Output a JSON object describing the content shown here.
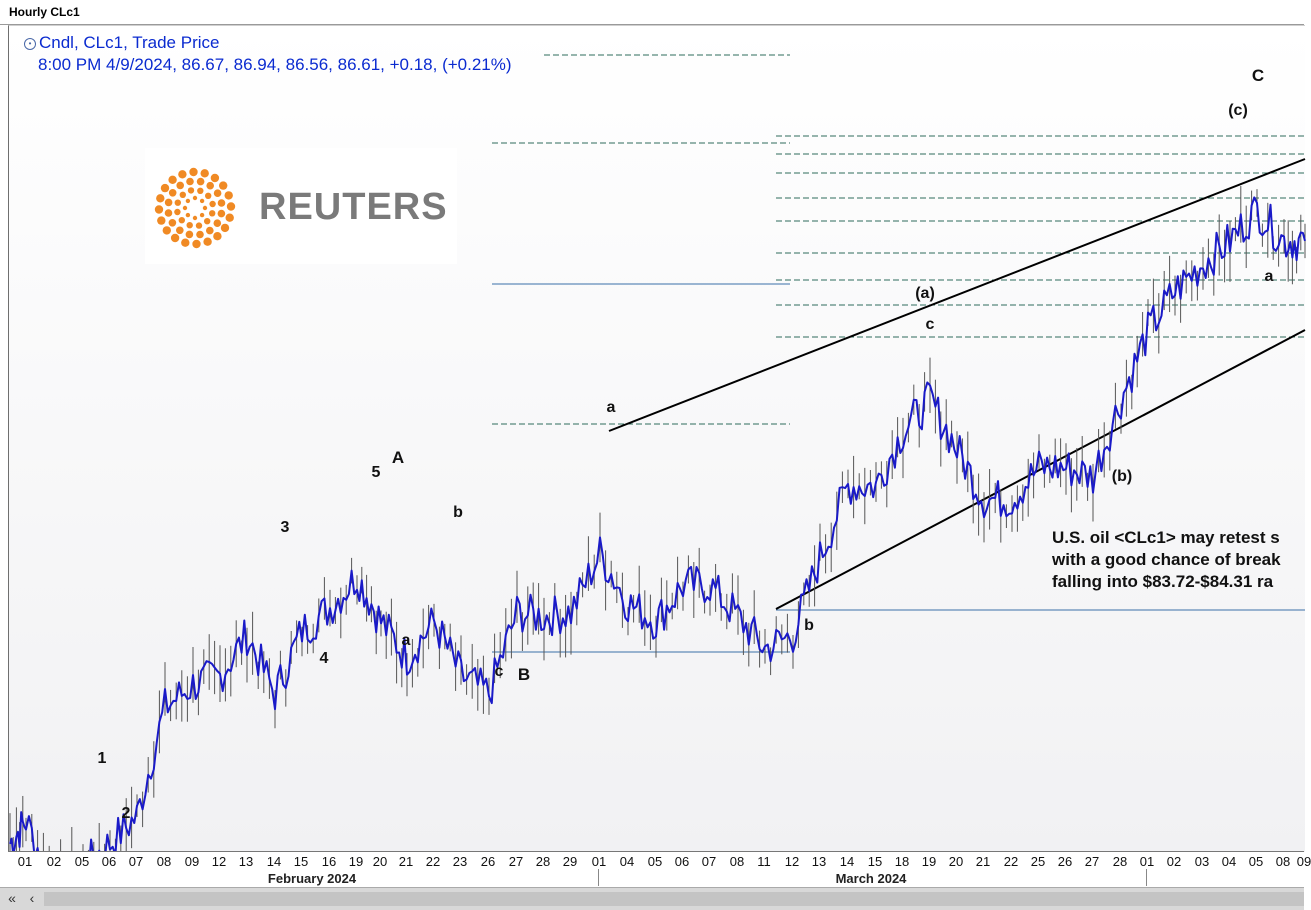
{
  "window": {
    "title": "Hourly CLc1"
  },
  "legend": {
    "line1": "Cndl, CLc1, Trade Price",
    "line2": "8:00 PM 4/9/2024, 86.67, 86.94, 86.56, 86.61, +0.18, (+0.21%)"
  },
  "logo": {
    "text": "REUTERS"
  },
  "note": {
    "line1": "U.S. oil <CLc1> may retest s",
    "line2": "with a good chance of break",
    "line3": "falling into $83.72-$84.31 ra"
  },
  "axis": {
    "days": [
      "01",
      "02",
      "05",
      "06",
      "07",
      "08",
      "09",
      "12",
      "13",
      "14",
      "15",
      "16",
      "19",
      "20",
      "21",
      "22",
      "23",
      "26",
      "27",
      "28",
      "29",
      "01",
      "04",
      "05",
      "06",
      "07",
      "08",
      "11",
      "12",
      "13",
      "14",
      "15",
      "18",
      "19",
      "20",
      "21",
      "22",
      "25",
      "26",
      "27",
      "28",
      "01",
      "02",
      "03",
      "04",
      "05",
      "08",
      "09"
    ],
    "months": [
      "February 2024",
      "March 2024"
    ]
  },
  "colors": {
    "price": "#1a1ac8",
    "legend_text": "#0b2bd0",
    "fib_line": "#2e6b5c",
    "hline": "#3a6fa8",
    "channel": "#000000",
    "logo_orange": "#f08a24"
  },
  "chart_data": {
    "type": "candlestick",
    "series": [
      {
        "name": "CLc1",
        "x": [
          "2024-02-01",
          "2024-02-02",
          "2024-02-05",
          "2024-02-06",
          "2024-02-07",
          "2024-02-08",
          "2024-02-09",
          "2024-02-12",
          "2024-02-13",
          "2024-02-14",
          "2024-02-15",
          "2024-02-16",
          "2024-02-19",
          "2024-02-20",
          "2024-02-21",
          "2024-02-22",
          "2024-02-23",
          "2024-02-26",
          "2024-02-27",
          "2024-02-28",
          "2024-02-29",
          "2024-03-01",
          "2024-03-04",
          "2024-03-05",
          "2024-03-06",
          "2024-03-07",
          "2024-03-08",
          "2024-03-11",
          "2024-03-12",
          "2024-03-13",
          "2024-03-14",
          "2024-03-15",
          "2024-03-18",
          "2024-03-19",
          "2024-03-20",
          "2024-03-21",
          "2024-03-22",
          "2024-03-25",
          "2024-03-26",
          "2024-03-27",
          "2024-03-28",
          "2024-04-01",
          "2024-04-02",
          "2024-04-03",
          "2024-04-04",
          "2024-04-05",
          "2024-04-08",
          "2024-04-09"
        ],
        "values": [
          73.8,
          72.3,
          72.8,
          73.3,
          73.9,
          76.3,
          76.8,
          77.0,
          77.9,
          76.6,
          78.0,
          78.5,
          79.2,
          78.2,
          77.4,
          78.2,
          77.0,
          76.6,
          78.4,
          78.3,
          78.4,
          79.7,
          78.6,
          78.2,
          79.0,
          79.0,
          78.3,
          77.6,
          77.9,
          79.6,
          81.2,
          81.2,
          82.4,
          83.1,
          82.0,
          80.9,
          80.9,
          81.6,
          81.6,
          81.4,
          83.1,
          84.6,
          85.5,
          86.1,
          86.6,
          87.3,
          86.6,
          86.6
        ]
      }
    ],
    "wave_labels": [
      "1",
      "2",
      "3",
      "4",
      "5",
      "A",
      "a",
      "b",
      "c",
      "B",
      "a",
      "b",
      "(a)",
      "c",
      "(b)",
      "a",
      "(c)",
      "C"
    ],
    "last_bar": {
      "time": "8:00 PM 4/9/2024",
      "open": 86.67,
      "high": 86.94,
      "low": 86.56,
      "close": 86.61,
      "change": 0.18,
      "change_pct": "+0.21%"
    },
    "grid": false
  }
}
